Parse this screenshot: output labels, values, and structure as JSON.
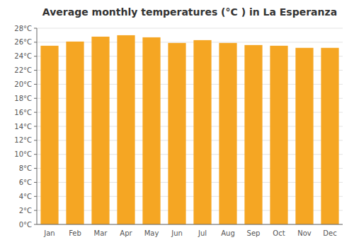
{
  "chart_data": {
    "type": "bar",
    "title": "Average monthly temperatures (°C ) in La Esperanza",
    "categories": [
      "Jan",
      "Feb",
      "Mar",
      "Apr",
      "May",
      "Jun",
      "Jul",
      "Aug",
      "Sep",
      "Oct",
      "Nov",
      "Dec"
    ],
    "values": [
      25.5,
      26.1,
      26.8,
      27.0,
      26.7,
      25.9,
      26.3,
      25.9,
      25.6,
      25.5,
      25.2,
      25.2
    ],
    "color": "#F5A623",
    "ylim": [
      0,
      28
    ],
    "yticks": [
      {
        "value": 0,
        "label": "0°C"
      },
      {
        "value": 2,
        "label": "2°C"
      },
      {
        "value": 4,
        "label": "4°C"
      },
      {
        "value": 6,
        "label": "6°C"
      },
      {
        "value": 8,
        "label": "8°C"
      },
      {
        "value": 10,
        "label": "10°C"
      },
      {
        "value": 12,
        "label": "12°C"
      },
      {
        "value": 14,
        "label": "14°C"
      },
      {
        "value": 16,
        "label": "16°C"
      },
      {
        "value": 18,
        "label": "18°C"
      },
      {
        "value": 20,
        "label": "20°C"
      },
      {
        "value": 22,
        "label": "22°C"
      },
      {
        "value": 24,
        "label": "24°C"
      },
      {
        "value": 26,
        "label": "26°C"
      },
      {
        "value": 28,
        "label": "28°C"
      }
    ],
    "grid": true
  }
}
